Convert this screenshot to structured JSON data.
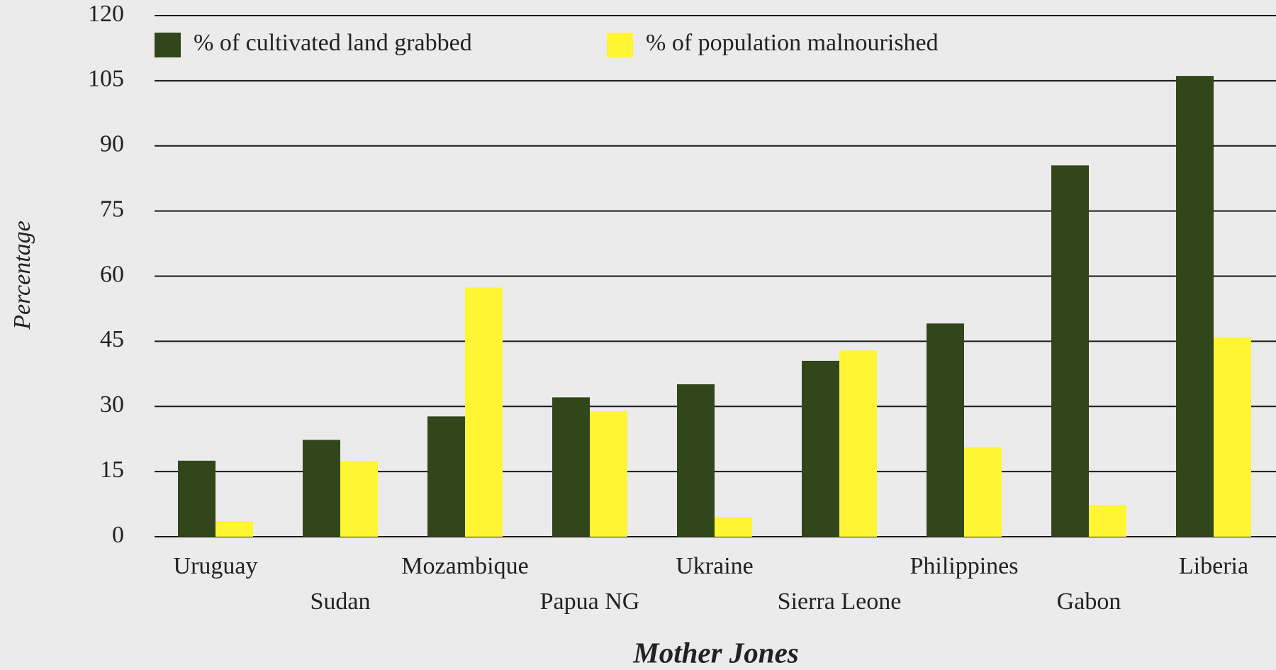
{
  "chart_data": {
    "type": "bar",
    "y_label": "Percentage",
    "source": "Mother Jones",
    "categories": [
      "Uruguay",
      "Sudan",
      "Mozambique",
      "Papua NG",
      "Ukraine",
      "Sierra Leone",
      "Philippines",
      "Gabon",
      "Liberia"
    ],
    "series": [
      {
        "name": "% of cultivated land grabbed",
        "color": "#31461a",
        "values": [
          17.5,
          22.3,
          27.7,
          32.1,
          35.1,
          40.5,
          49.1,
          85.5,
          106.1
        ]
      },
      {
        "name": "% of population malnourished",
        "color": "#fff533",
        "values": [
          3.6,
          17.4,
          57.4,
          28.9,
          4.5,
          42.9,
          20.6,
          7.3,
          45.9
        ]
      }
    ],
    "ylim": [
      0,
      120
    ],
    "yticks": [
      0,
      15,
      30,
      45,
      60,
      75,
      90,
      105,
      120
    ],
    "grid": true,
    "legend": "top-left"
  }
}
